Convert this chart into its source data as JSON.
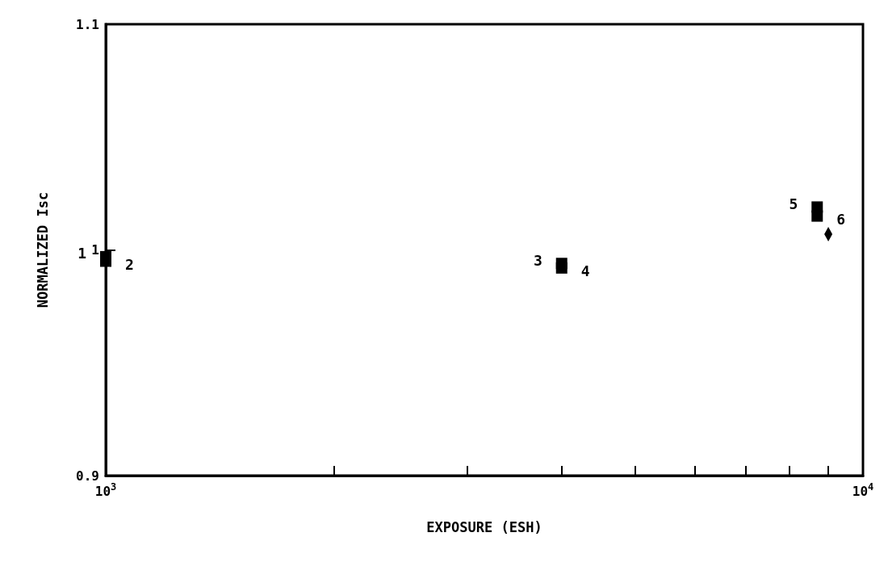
{
  "chart_data": {
    "type": "scatter",
    "xlabel": "EXPOSURE (ESH)",
    "ylabel": "NORMALIZED Isc",
    "log": "x",
    "grid": false,
    "xlim": [
      1000,
      10000
    ],
    "xticks": [
      {
        "value": 1000,
        "label": "10$^{3}$"
      },
      {
        "value": 2000,
        "label": null
      },
      {
        "value": 3000,
        "label": null
      },
      {
        "value": 4000,
        "label": null
      },
      {
        "value": 5000,
        "label": null
      },
      {
        "value": 6000,
        "label": null
      },
      {
        "value": 7000,
        "label": null
      },
      {
        "value": 8000,
        "label": null
      },
      {
        "value": 9000,
        "label": null
      },
      {
        "value": 10000,
        "label": "10$^{4}$"
      }
    ],
    "ylim": [
      0.9,
      1.1
    ],
    "yticks": [
      0.9,
      1,
      1.1
    ],
    "series": [
      {
        "color": "#000000",
        "marker": "square",
        "x": [
          1000,
          1000,
          4000,
          4000,
          8700,
          8700
        ],
        "values": [
          0.997,
          0.995,
          0.994,
          0.992,
          1.019,
          1.015
        ]
      },
      {
        "color": "#000000",
        "marker": "diamond",
        "x": [
          9000
        ],
        "values": [
          1.007
        ]
      }
    ],
    "annotations": [
      {
        "text": "1",
        "x": 1000,
        "y": 0.997
      },
      {
        "text": "2",
        "x": 1000,
        "y": 0.995
      },
      {
        "text": "3",
        "x": 4000,
        "y": 0.994
      },
      {
        "text": "4",
        "x": 4000,
        "y": 0.992
      },
      {
        "text": "5",
        "x": 8700,
        "y": 1.019
      },
      {
        "text": "6",
        "x": 8700,
        "y": 1.015
      }
    ]
  }
}
